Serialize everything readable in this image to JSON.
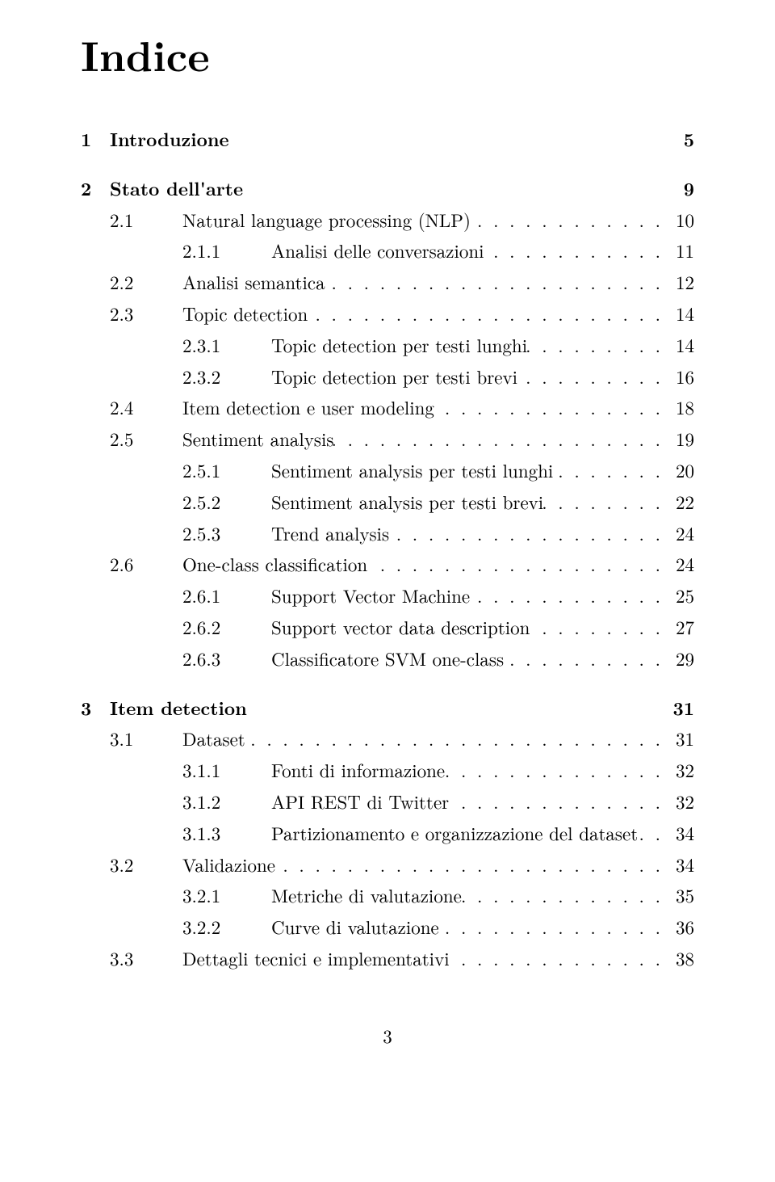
{
  "title": "Indice",
  "footer_page": "3",
  "entries": [
    {
      "level": "chapter",
      "num": "1",
      "label": "Introduzione",
      "page": "5"
    },
    {
      "level": "chapter",
      "num": "2",
      "label": "Stato dell'arte",
      "page": "9"
    },
    {
      "level": "section",
      "num": "2.1",
      "label": "Natural language processing (NLP)",
      "page": "10"
    },
    {
      "level": "subsection",
      "num": "2.1.1",
      "label": "Analisi delle conversazioni",
      "page": "11"
    },
    {
      "level": "section",
      "num": "2.2",
      "label": "Analisi semantica",
      "page": "12"
    },
    {
      "level": "section",
      "num": "2.3",
      "label": "Topic detection",
      "page": "14"
    },
    {
      "level": "subsection",
      "num": "2.3.1",
      "label": "Topic detection per testi lunghi",
      "page": "14"
    },
    {
      "level": "subsection",
      "num": "2.3.2",
      "label": "Topic detection per testi brevi",
      "page": "16"
    },
    {
      "level": "section",
      "num": "2.4",
      "label": "Item detection e user modeling",
      "page": "18"
    },
    {
      "level": "section",
      "num": "2.5",
      "label": "Sentiment analysis",
      "page": "19"
    },
    {
      "level": "subsection",
      "num": "2.5.1",
      "label": "Sentiment analysis per testi lunghi",
      "page": "20"
    },
    {
      "level": "subsection",
      "num": "2.5.2",
      "label": "Sentiment analysis per testi brevi",
      "page": "22"
    },
    {
      "level": "subsection",
      "num": "2.5.3",
      "label": "Trend analysis",
      "page": "24"
    },
    {
      "level": "section",
      "num": "2.6",
      "label": "One-class classification",
      "page": "24"
    },
    {
      "level": "subsection",
      "num": "2.6.1",
      "label": "Support Vector Machine",
      "page": "25"
    },
    {
      "level": "subsection",
      "num": "2.6.2",
      "label": "Support vector data description",
      "page": "27"
    },
    {
      "level": "subsection",
      "num": "2.6.3",
      "label": "Classificatore SVM one-class",
      "page": "29"
    },
    {
      "level": "chapter",
      "num": "3",
      "label": "Item detection",
      "page": "31"
    },
    {
      "level": "section",
      "num": "3.1",
      "label": "Dataset",
      "page": "31"
    },
    {
      "level": "subsection",
      "num": "3.1.1",
      "label": "Fonti di informazione",
      "page": "32"
    },
    {
      "level": "subsection",
      "num": "3.1.2",
      "label": "API REST di Twitter",
      "page": "32"
    },
    {
      "level": "subsection",
      "num": "3.1.3",
      "label": "Partizionamento e organizzazione del dataset",
      "page": "34"
    },
    {
      "level": "section",
      "num": "3.2",
      "label": "Validazione",
      "page": "34"
    },
    {
      "level": "subsection",
      "num": "3.2.1",
      "label": "Metriche di valutazione",
      "page": "35"
    },
    {
      "level": "subsection",
      "num": "3.2.2",
      "label": "Curve di valutazione",
      "page": "36"
    },
    {
      "level": "section",
      "num": "3.3",
      "label": "Dettagli tecnici e implementativi",
      "page": "38"
    }
  ]
}
